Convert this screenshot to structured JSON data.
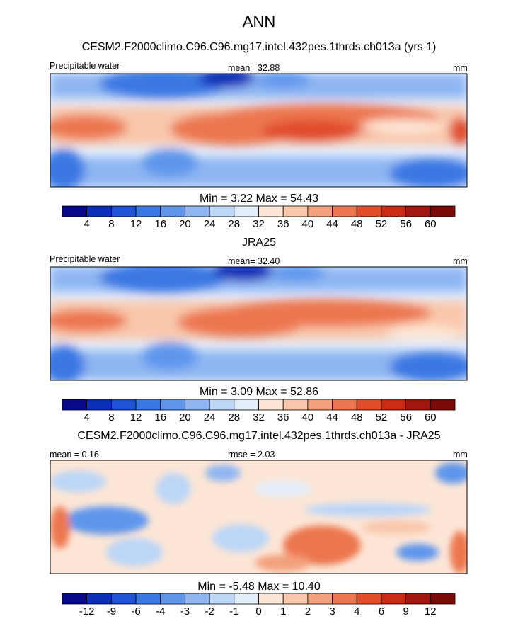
{
  "title": "ANN",
  "panels": [
    {
      "title": "CESM2.F2000climo.C96.C96.mg17.intel.432pes.1thrds.ch013a (yrs 1)",
      "left_label": "Precipitable water",
      "center_label": "mean=  32.88",
      "right_label": "mm",
      "min_max": "Min =    3.22 Max =  54.43"
    },
    {
      "title": "JRA25",
      "left_label": "Precipitable water",
      "center_label": "mean=  32.40",
      "right_label": "mm",
      "min_max": "Min =    3.09 Max =  52.86"
    },
    {
      "title": "CESM2.F2000climo.C96.C96.mg17.intel.432pes.1thrds.ch013a - JRA25",
      "left_label": "mean =   0.16",
      "center_label": "rmse =    2.03",
      "right_label": "mm",
      "min_max": "Min =   -5.48 Max =  10.40"
    }
  ],
  "chart_data": [
    {
      "type": "heatmap",
      "title": "Precipitable water (CESM2)",
      "units": "mm",
      "mean": 32.88,
      "min": 3.22,
      "max": 54.43,
      "colorbar_ticks": [
        "4",
        "8",
        "12",
        "16",
        "20",
        "24",
        "28",
        "32",
        "36",
        "40",
        "44",
        "48",
        "52",
        "56",
        "60"
      ],
      "colors": [
        "#08088a",
        "#0c2fb8",
        "#1f54d6",
        "#3a78e3",
        "#5f96ec",
        "#8fb6f2",
        "#bcd6f7",
        "#e4eefb",
        "#fde6d6",
        "#f9c7ac",
        "#f3a07c",
        "#ec7750",
        "#e14c2b",
        "#c92d16",
        "#a3180e",
        "#7a0b08"
      ]
    },
    {
      "type": "heatmap",
      "title": "Precipitable water (JRA25)",
      "units": "mm",
      "mean": 32.4,
      "min": 3.09,
      "max": 52.86,
      "colorbar_ticks": [
        "4",
        "8",
        "12",
        "16",
        "20",
        "24",
        "28",
        "32",
        "36",
        "40",
        "44",
        "48",
        "52",
        "56",
        "60"
      ],
      "colors": [
        "#08088a",
        "#0c2fb8",
        "#1f54d6",
        "#3a78e3",
        "#5f96ec",
        "#8fb6f2",
        "#bcd6f7",
        "#e4eefb",
        "#fde6d6",
        "#f9c7ac",
        "#f3a07c",
        "#ec7750",
        "#e14c2b",
        "#c92d16",
        "#a3180e",
        "#7a0b08"
      ]
    },
    {
      "type": "heatmap",
      "title": "CESM2 - JRA25",
      "units": "mm",
      "mean": 0.16,
      "rmse": 2.03,
      "min": -5.48,
      "max": 10.4,
      "colorbar_ticks": [
        "-12",
        "-9",
        "-6",
        "-4",
        "-3",
        "-2",
        "-1",
        "0",
        "1",
        "2",
        "3",
        "4",
        "6",
        "9",
        "12"
      ],
      "colors": [
        "#08088a",
        "#0c2fb8",
        "#1f54d6",
        "#3a78e3",
        "#5f96ec",
        "#8fb6f2",
        "#bcd6f7",
        "#e4eefb",
        "#fde6d6",
        "#f9c7ac",
        "#f3a07c",
        "#ec7750",
        "#e14c2b",
        "#c92d16",
        "#a3180e",
        "#7a0b08"
      ]
    }
  ]
}
